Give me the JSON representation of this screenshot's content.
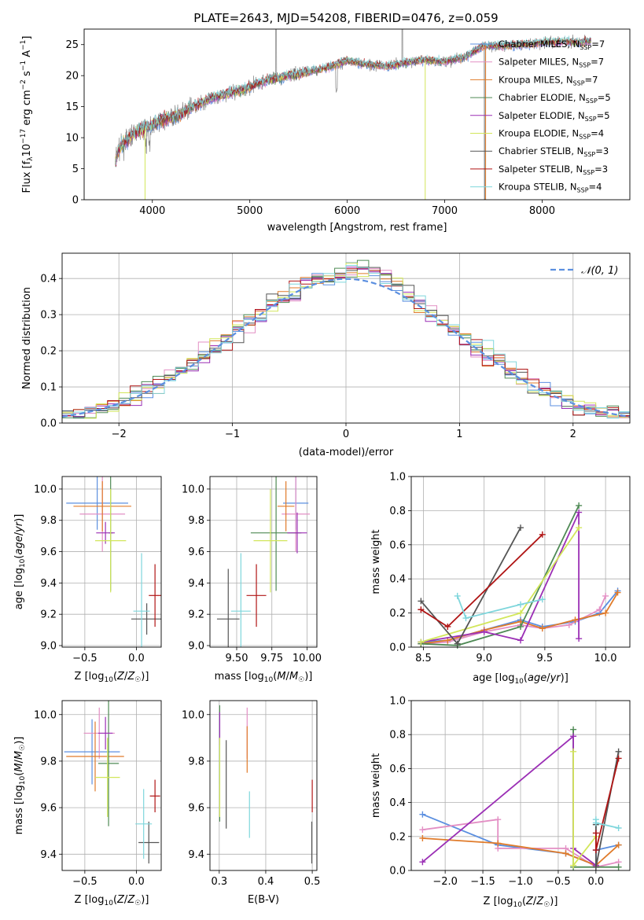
{
  "title": "PLATE=2643, MJD=54208, FIBERID=0476, z=0.059",
  "colors": {
    "chabrier_miles": "#5b8fe0",
    "salpeter_miles": "#e38fc4",
    "kroupa_miles": "#e07b2a",
    "chabrier_elodie": "#4f8a55",
    "salpeter_elodie": "#9b2fb5",
    "kroupa_elodie": "#d2e65a",
    "chabrier_stelib": "#555555",
    "salpeter_stelib": "#b01515",
    "kroupa_stelib": "#7fd6dc",
    "grid": "#b0b0b0",
    "data_spectrum": "#808080"
  },
  "chart_data": [
    {
      "id": "spectrum",
      "type": "line",
      "xlabel": "wavelength [Angstrom, rest frame]",
      "ylabel": "Flux [f_λ10^-17 erg cm^-2 s^-1 A^-1]",
      "xlim": [
        3300,
        8900
      ],
      "ylim": [
        0,
        27.5
      ],
      "xticks": [
        4000,
        5000,
        6000,
        7000,
        8000
      ],
      "yticks": [
        0,
        5,
        10,
        15,
        20,
        25
      ],
      "grid": false,
      "legend_position": "top-right",
      "continuum": [
        [
          3620,
          6
        ],
        [
          3650,
          8
        ],
        [
          3700,
          9
        ],
        [
          3800,
          10.5
        ],
        [
          3900,
          11.5
        ],
        [
          4000,
          12
        ],
        [
          4100,
          12.8
        ],
        [
          4200,
          13.3
        ],
        [
          4300,
          13.8
        ],
        [
          4400,
          14.8
        ],
        [
          4500,
          15.6
        ],
        [
          4700,
          16.8
        ],
        [
          4900,
          17.6
        ],
        [
          5000,
          18.2
        ],
        [
          5200,
          19.4
        ],
        [
          5400,
          20
        ],
        [
          5600,
          20.6
        ],
        [
          5800,
          21.3
        ],
        [
          6000,
          22.4
        ],
        [
          6200,
          21.8
        ],
        [
          6400,
          21.5
        ],
        [
          6600,
          22.1
        ],
        [
          6800,
          22.5
        ],
        [
          7000,
          22.3
        ],
        [
          7200,
          22.9
        ],
        [
          7400,
          24.8
        ],
        [
          7600,
          24.8
        ],
        [
          7800,
          25
        ],
        [
          8000,
          25.3
        ],
        [
          8200,
          25.5
        ],
        [
          8400,
          25.4
        ],
        [
          8500,
          25.6
        ]
      ],
      "legend": [
        {
          "label": "Chabrier MILES, N",
          "sub": "SSP",
          "val": "=7",
          "color": "#5b8fe0"
        },
        {
          "label": "Salpeter MILES, N",
          "sub": "SSP",
          "val": "=7",
          "color": "#e38fc4"
        },
        {
          "label": "Kroupa MILES, N",
          "sub": "SSP",
          "val": "=7",
          "color": "#e07b2a"
        },
        {
          "label": "Chabrier ELODIE, N",
          "sub": "SSP",
          "val": "=5",
          "color": "#4f8a55"
        },
        {
          "label": "Salpeter ELODIE, N",
          "sub": "SSP",
          "val": "=5",
          "color": "#9b2fb5"
        },
        {
          "label": "Kroupa ELODIE, N",
          "sub": "SSP",
          "val": "=4",
          "color": "#d2e65a"
        },
        {
          "label": "Chabrier STELIB, N",
          "sub": "SSP",
          "val": "=3",
          "color": "#555555"
        },
        {
          "label": "Salpeter STELIB, N",
          "sub": "SSP",
          "val": "=3",
          "color": "#b01515"
        },
        {
          "label": "Kroupa STELIB, N",
          "sub": "SSP",
          "val": "=4",
          "color": "#7fd6dc"
        }
      ]
    },
    {
      "id": "residuals",
      "type": "line",
      "xlabel": "(data-model)/error",
      "ylabel": "Normed distribution",
      "xlim": [
        -2.5,
        2.5
      ],
      "ylim": [
        0,
        0.47
      ],
      "xticks": [
        -2,
        -1,
        0,
        1,
        2
      ],
      "yticks": [
        0.0,
        0.1,
        0.2,
        0.3,
        0.4
      ],
      "grid": true,
      "legend_position": "top-right",
      "legend": [
        {
          "label": "𝒩(0, 1)",
          "color": "#5b8fe0",
          "style": "dashed"
        }
      ],
      "reference_curve": "normal(0,1)"
    },
    {
      "id": "age_vs_Z",
      "type": "scatter",
      "xlabel": "Z [log10(Z/Z☉)]",
      "ylabel": "age [log10(age/yr)]",
      "xlim": [
        -0.72,
        0.24
      ],
      "ylim": [
        8.99,
        10.08
      ],
      "xticks": [
        -0.5,
        0.0
      ],
      "yticks": [
        9.0,
        9.2,
        9.4,
        9.6,
        9.8,
        10.0
      ],
      "grid": true,
      "points": [
        {
          "name": "Chabrier MILES",
          "x": -0.38,
          "xerr": 0.3,
          "y": 9.91,
          "yerr": 0.17,
          "color": "#5b8fe0"
        },
        {
          "name": "Salpeter MILES",
          "x": -0.33,
          "xerr": 0.22,
          "y": 9.84,
          "yerr": 0.24,
          "color": "#e38fc4"
        },
        {
          "name": "Kroupa MILES",
          "x": -0.33,
          "xerr": 0.28,
          "y": 9.89,
          "yerr": 0.16,
          "color": "#e07b2a"
        },
        {
          "name": "Chabrier ELODIE",
          "x": -0.25,
          "xerr": 0.02,
          "y": 9.72,
          "yerr": 0.37,
          "color": "#4f8a55"
        },
        {
          "name": "Salpeter ELODIE",
          "x": -0.3,
          "xerr": 0.09,
          "y": 9.72,
          "yerr": 0.07,
          "color": "#9b2fb5"
        },
        {
          "name": "Kroupa ELODIE",
          "x": -0.25,
          "xerr": 0.15,
          "y": 9.67,
          "yerr": 0.33,
          "color": "#d2e65a"
        },
        {
          "name": "Chabrier STELIB",
          "x": 0.1,
          "xerr": 0.15,
          "y": 9.17,
          "yerr": 0.1,
          "color": "#555555"
        },
        {
          "name": "Salpeter STELIB",
          "x": 0.18,
          "xerr": 0.06,
          "y": 9.32,
          "yerr": 0.2,
          "color": "#b01515"
        },
        {
          "name": "Kroupa STELIB",
          "x": 0.05,
          "xerr": 0.08,
          "y": 9.22,
          "yerr": 0.37,
          "color": "#7fd6dc"
        }
      ]
    },
    {
      "id": "age_vs_mass",
      "type": "scatter",
      "xlabel": "mass [log10(M/M☉)]",
      "ylabel": "",
      "xlim": [
        9.31,
        10.07
      ],
      "ylim": [
        8.99,
        10.08
      ],
      "xticks": [
        9.5,
        9.75,
        10.0
      ],
      "yticks": [
        9.0,
        9.2,
        9.4,
        9.6,
        9.8,
        10.0
      ],
      "grid": true,
      "points": [
        {
          "name": "Chabrier MILES",
          "x": 9.92,
          "xerr": 0.09,
          "y": 9.91,
          "yerr": 0.17,
          "color": "#5b8fe0"
        },
        {
          "name": "Salpeter MILES",
          "x": 9.92,
          "xerr": 0.1,
          "y": 9.84,
          "yerr": 0.24,
          "color": "#e38fc4"
        },
        {
          "name": "Kroupa MILES",
          "x": 9.85,
          "xerr": 0.06,
          "y": 9.89,
          "yerr": 0.16,
          "color": "#e07b2a"
        },
        {
          "name": "Chabrier ELODIE",
          "x": 9.78,
          "xerr": 0.18,
          "y": 9.72,
          "yerr": 0.37,
          "color": "#4f8a55"
        },
        {
          "name": "Salpeter ELODIE",
          "x": 9.93,
          "xerr": 0.07,
          "y": 9.72,
          "yerr": 0.13,
          "color": "#9b2fb5"
        },
        {
          "name": "Kroupa ELODIE",
          "x": 9.74,
          "xerr": 0.12,
          "y": 9.67,
          "yerr": 0.33,
          "color": "#d2e65a"
        },
        {
          "name": "Chabrier STELIB",
          "x": 9.44,
          "xerr": 0.08,
          "y": 9.17,
          "yerr": 0.32,
          "color": "#555555"
        },
        {
          "name": "Salpeter STELIB",
          "x": 9.64,
          "xerr": 0.07,
          "y": 9.32,
          "yerr": 0.2,
          "color": "#b01515"
        },
        {
          "name": "Kroupa STELIB",
          "x": 9.53,
          "xerr": 0.07,
          "y": 9.22,
          "yerr": 0.37,
          "color": "#7fd6dc"
        }
      ]
    },
    {
      "id": "weight_vs_age",
      "type": "line",
      "xlabel": "age [log10(age/yr)]",
      "ylabel": "mass weight",
      "xlim": [
        8.4,
        10.2
      ],
      "ylim": [
        0,
        1.0
      ],
      "xticks": [
        8.5,
        9.0,
        9.5,
        10.0
      ],
      "yticks": [
        0.0,
        0.2,
        0.4,
        0.6,
        0.8,
        1.0
      ],
      "grid": true,
      "series": [
        {
          "name": "Chabrier MILES",
          "color": "#5b8fe0",
          "x": [
            8.48,
            8.7,
            9.0,
            9.3,
            9.48,
            9.75,
            9.95,
            10.1
          ],
          "y": [
            0.03,
            0.04,
            0.1,
            0.16,
            0.12,
            0.15,
            0.2,
            0.33
          ]
        },
        {
          "name": "Salpeter MILES",
          "color": "#e38fc4",
          "x": [
            8.48,
            8.7,
            9.0,
            9.3,
            9.48,
            9.7,
            9.95,
            10.0
          ],
          "y": [
            0.02,
            0.03,
            0.09,
            0.13,
            0.11,
            0.13,
            0.22,
            0.3
          ]
        },
        {
          "name": "Kroupa MILES",
          "color": "#e07b2a",
          "x": [
            8.48,
            8.7,
            9.0,
            9.3,
            9.48,
            9.75,
            10.0,
            10.1
          ],
          "y": [
            0.02,
            0.04,
            0.1,
            0.15,
            0.11,
            0.16,
            0.2,
            0.32
          ]
        },
        {
          "name": "Chabrier ELODIE",
          "color": "#4f8a55",
          "x": [
            8.48,
            8.78,
            9.3,
            9.78
          ],
          "y": [
            0.02,
            0.01,
            0.12,
            0.83
          ]
        },
        {
          "name": "Salpeter ELODIE",
          "color": "#9b2fb5",
          "x": [
            8.48,
            9.0,
            9.3,
            9.78,
            9.78
          ],
          "y": [
            0.03,
            0.09,
            0.04,
            0.79,
            0.05
          ]
        },
        {
          "name": "Kroupa ELODIE",
          "color": "#d2e65a",
          "x": [
            8.48,
            9.3,
            9.78
          ],
          "y": [
            0.03,
            0.2,
            0.7
          ]
        },
        {
          "name": "Chabrier STELIB",
          "color": "#555555",
          "x": [
            8.48,
            8.78,
            9.3
          ],
          "y": [
            0.27,
            0.02,
            0.7
          ]
        },
        {
          "name": "Salpeter STELIB",
          "color": "#b01515",
          "x": [
            8.48,
            8.7,
            9.48
          ],
          "y": [
            0.22,
            0.12,
            0.66
          ]
        },
        {
          "name": "Kroupa STELIB",
          "color": "#7fd6dc",
          "x": [
            8.78,
            8.85,
            9.3,
            9.48
          ],
          "y": [
            0.3,
            0.17,
            0.25,
            0.28
          ]
        }
      ]
    },
    {
      "id": "mass_vs_Z",
      "type": "scatter",
      "xlabel": "Z [log10(Z/Z☉)]",
      "ylabel": "mass [log10(M/M☉)]",
      "xlim": [
        -0.72,
        0.24
      ],
      "ylim": [
        9.33,
        10.06
      ],
      "xticks": [
        -0.5,
        0.0
      ],
      "yticks": [
        9.4,
        9.6,
        9.8,
        10.0
      ],
      "grid": true,
      "points": [
        {
          "name": "Chabrier MILES",
          "x": -0.43,
          "xerr": 0.27,
          "y": 9.84,
          "yerr": 0.14,
          "color": "#5b8fe0"
        },
        {
          "name": "Salpeter MILES",
          "x": -0.36,
          "xerr": 0.15,
          "y": 9.92,
          "yerr": 0.11,
          "color": "#e38fc4"
        },
        {
          "name": "Kroupa MILES",
          "x": -0.4,
          "xerr": 0.28,
          "y": 9.82,
          "yerr": 0.15,
          "color": "#e07b2a"
        },
        {
          "name": "Chabrier ELODIE",
          "x": -0.27,
          "xerr": 0.1,
          "y": 9.79,
          "yerr": 0.27,
          "color": "#4f8a55"
        },
        {
          "name": "Salpeter ELODIE",
          "x": -0.3,
          "xerr": 0.07,
          "y": 9.92,
          "yerr": 0.07,
          "color": "#9b2fb5"
        },
        {
          "name": "Kroupa ELODIE",
          "x": -0.28,
          "xerr": 0.12,
          "y": 9.73,
          "yerr": 0.17,
          "color": "#d2e65a"
        },
        {
          "name": "Chabrier STELIB",
          "x": 0.12,
          "xerr": 0.1,
          "y": 9.45,
          "yerr": 0.09,
          "color": "#555555"
        },
        {
          "name": "Salpeter STELIB",
          "x": 0.18,
          "xerr": 0.05,
          "y": 9.65,
          "yerr": 0.07,
          "color": "#b01515"
        },
        {
          "name": "Kroupa STELIB",
          "x": 0.07,
          "xerr": 0.08,
          "y": 9.53,
          "yerr": 0.15,
          "color": "#7fd6dc"
        }
      ]
    },
    {
      "id": "mass_vs_EBV",
      "type": "scatter",
      "xlabel": "E(B-V)",
      "ylabel": "",
      "xlim": [
        0.28,
        0.51
      ],
      "ylim": [
        9.33,
        10.06
      ],
      "xticks": [
        0.3,
        0.4,
        0.5
      ],
      "yticks": [
        9.4,
        9.6,
        9.8,
        10.0
      ],
      "grid": true,
      "points": [
        {
          "name": "Chabrier MILES",
          "x": 0.301,
          "xerr": 0,
          "y": 9.84,
          "yerr": 0.14,
          "color": "#5b8fe0"
        },
        {
          "name": "Salpeter MILES",
          "x": 0.36,
          "xerr": 0,
          "y": 9.92,
          "yerr": 0.11,
          "color": "#e38fc4"
        },
        {
          "name": "Kroupa MILES",
          "x": 0.36,
          "xerr": 0,
          "y": 9.85,
          "yerr": 0.1,
          "color": "#e07b2a"
        },
        {
          "name": "Chabrier ELODIE",
          "x": 0.301,
          "xerr": 0,
          "y": 9.79,
          "yerr": 0.25,
          "color": "#4f8a55"
        },
        {
          "name": "Salpeter ELODIE",
          "x": 0.301,
          "xerr": 0,
          "y": 9.94,
          "yerr": 0.07,
          "color": "#9b2fb5"
        },
        {
          "name": "Kroupa ELODIE",
          "x": 0.301,
          "xerr": 0,
          "y": 9.73,
          "yerr": 0.17,
          "color": "#d2e65a"
        },
        {
          "name": "Chabrier STELIB",
          "x": 0.499,
          "xerr": 0,
          "y": 9.45,
          "yerr": 0.09,
          "color": "#555555"
        },
        {
          "name": "Salpeter STELIB",
          "x": 0.5,
          "xerr": 0,
          "y": 9.65,
          "yerr": 0.07,
          "color": "#b01515"
        },
        {
          "name": "Kroupa STELIB",
          "x": 0.365,
          "xerr": 0,
          "y": 9.57,
          "yerr": 0.1,
          "color": "#7fd6dc"
        },
        {
          "name": "Chabrier ELODIE",
          "x": 0.315,
          "xerr": 0,
          "y": 9.7,
          "yerr": 0.19,
          "color": "#555555"
        }
      ]
    },
    {
      "id": "weight_vs_Z",
      "type": "line",
      "xlabel": "Z [log10(Z/Z☉)]",
      "ylabel": "mass weight",
      "xlim": [
        -2.45,
        0.45
      ],
      "ylim": [
        0,
        1.0
      ],
      "xticks": [
        -2.0,
        -1.5,
        -1.0,
        -0.5,
        0.0
      ],
      "yticks": [
        0.0,
        0.2,
        0.4,
        0.6,
        0.8,
        1.0
      ],
      "grid": true,
      "series": [
        {
          "name": "Chabrier MILES",
          "color": "#5b8fe0",
          "x": [
            -2.3,
            -1.3,
            -0.4,
            0.0,
            0.0,
            0.3
          ],
          "y": [
            0.33,
            0.15,
            0.1,
            0.03,
            0.12,
            0.15
          ]
        },
        {
          "name": "Salpeter MILES",
          "color": "#e38fc4",
          "x": [
            -2.3,
            -1.3,
            -1.3,
            -0.4,
            0.0,
            0.3
          ],
          "y": [
            0.24,
            0.3,
            0.13,
            0.13,
            0.02,
            0.05
          ]
        },
        {
          "name": "Kroupa MILES",
          "color": "#e07b2a",
          "x": [
            -2.3,
            -1.3,
            -0.4,
            0.0,
            0.3
          ],
          "y": [
            0.19,
            0.16,
            0.1,
            0.03,
            0.15
          ]
        },
        {
          "name": "Chabrier ELODIE",
          "color": "#4f8a55",
          "x": [
            -0.3,
            -0.3,
            0.0,
            0.3
          ],
          "y": [
            0.83,
            0.02,
            0.02,
            0.02
          ]
        },
        {
          "name": "Salpeter ELODIE",
          "color": "#9b2fb5",
          "x": [
            -2.3,
            -0.3,
            -0.3,
            0.0
          ],
          "y": [
            0.05,
            0.79,
            0.13,
            0.03
          ]
        },
        {
          "name": "Kroupa ELODIE",
          "color": "#d2e65a",
          "x": [
            -0.3,
            -0.3,
            0.0
          ],
          "y": [
            0.7,
            0.03,
            0.2
          ]
        },
        {
          "name": "Chabrier STELIB",
          "color": "#555555",
          "x": [
            0.0,
            0.0,
            0.3
          ],
          "y": [
            0.27,
            0.02,
            0.7
          ]
        },
        {
          "name": "Salpeter STELIB",
          "color": "#b01515",
          "x": [
            0.0,
            0.0,
            0.3
          ],
          "y": [
            0.22,
            0.12,
            0.66
          ]
        },
        {
          "name": "Kroupa STELIB",
          "color": "#7fd6dc",
          "x": [
            0.0,
            0.0,
            0.3
          ],
          "y": [
            0.3,
            0.28,
            0.25
          ]
        }
      ]
    }
  ]
}
